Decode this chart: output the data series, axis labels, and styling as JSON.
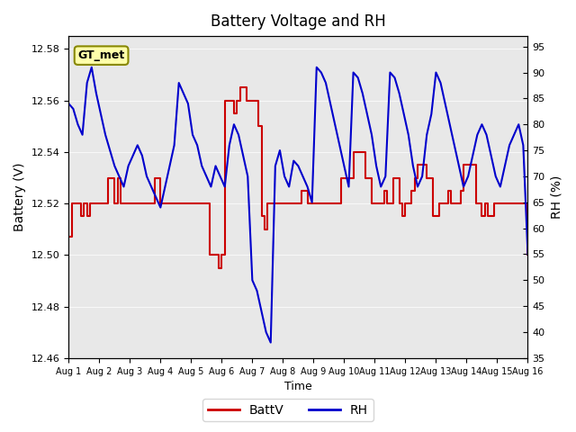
{
  "title": "Battery Voltage and RH",
  "xlabel": "Time",
  "ylabel_left": "Battery (V)",
  "ylabel_right": "RH (%)",
  "ylim_left": [
    12.46,
    12.585
  ],
  "ylim_right": [
    35,
    97
  ],
  "yticks_left": [
    12.46,
    12.48,
    12.5,
    12.52,
    12.54,
    12.56,
    12.58
  ],
  "yticks_right": [
    35,
    40,
    45,
    50,
    55,
    60,
    65,
    70,
    75,
    80,
    85,
    90,
    95
  ],
  "xtick_labels": [
    "Aug 1",
    "Aug 2",
    "Aug 3",
    "Aug 4",
    "Aug 5",
    "Aug 6",
    "Aug 7",
    "Aug 8",
    "Aug 9",
    "Aug 10",
    "Aug 11",
    "Aug 12",
    "Aug 13",
    "Aug 14",
    "Aug 15",
    "Aug 16"
  ],
  "annotation": "GT_met",
  "bg_color": "#e8e8e8",
  "battv_color": "#cc0000",
  "rh_color": "#0000cc",
  "legend_labels": [
    "BattV",
    "RH"
  ],
  "battv_x": [
    0,
    0.1,
    0.2,
    0.3,
    0.4,
    0.5,
    0.6,
    0.7,
    0.8,
    0.9,
    1.0,
    1.1,
    1.2,
    1.3,
    1.4,
    1.5,
    1.6,
    1.7,
    1.8,
    1.9,
    2.0,
    2.1,
    2.2,
    2.3,
    2.4,
    2.5,
    2.6,
    2.7,
    2.8,
    2.9,
    3.0,
    3.1,
    3.2,
    3.3,
    3.4,
    3.5,
    3.6,
    3.7,
    3.8,
    3.9,
    4.0,
    4.1,
    4.2,
    4.3,
    4.4,
    4.5,
    4.6,
    4.7,
    4.8,
    4.9,
    5.0,
    5.1,
    5.2,
    5.3,
    5.4,
    5.5,
    5.6,
    5.7,
    5.8,
    5.9,
    6.0,
    6.1,
    6.2,
    6.3,
    6.4,
    6.5,
    6.6,
    6.7,
    6.8,
    6.9,
    7.0,
    7.1,
    7.2,
    7.3,
    7.4,
    7.5,
    7.6,
    7.7,
    7.8,
    7.9,
    8.0,
    8.1,
    8.2,
    8.3,
    8.4,
    8.5,
    8.6,
    8.7,
    8.8,
    8.9,
    9.0,
    9.1,
    9.2,
    9.3,
    9.4,
    9.5,
    9.6,
    9.7,
    9.8,
    9.9,
    10.0,
    10.1,
    10.2,
    10.3,
    10.4,
    10.5,
    10.6,
    10.7,
    10.8,
    10.9,
    11.0,
    11.1,
    11.2,
    11.3,
    11.4,
    11.5,
    11.6,
    11.7,
    11.8,
    11.9,
    12.0,
    12.1,
    12.2,
    12.3,
    12.4,
    12.5,
    12.6,
    12.7,
    12.8,
    12.9,
    13.0,
    13.1,
    13.2,
    13.3,
    13.4,
    13.5,
    13.6,
    13.7,
    13.8,
    13.9,
    14.0,
    14.1,
    14.2,
    14.3,
    14.4,
    14.5,
    14.6,
    14.7,
    14.8,
    14.9,
    15.0
  ],
  "battv_y": [
    12.507,
    12.52,
    12.52,
    12.52,
    12.515,
    12.52,
    12.515,
    12.52,
    12.52,
    12.52,
    12.52,
    12.52,
    12.52,
    12.53,
    12.53,
    12.52,
    12.53,
    12.52,
    12.52,
    12.52,
    12.52,
    12.52,
    12.52,
    12.52,
    12.52,
    12.52,
    12.52,
    12.52,
    12.53,
    12.53,
    12.52,
    12.52,
    12.52,
    12.52,
    12.52,
    12.52,
    12.52,
    12.52,
    12.52,
    12.52,
    12.52,
    12.52,
    12.52,
    12.52,
    12.52,
    12.52,
    12.5,
    12.5,
    12.5,
    12.495,
    12.5,
    12.56,
    12.56,
    12.56,
    12.555,
    12.56,
    12.565,
    12.565,
    12.56,
    12.56,
    12.56,
    12.56,
    12.55,
    12.515,
    12.51,
    12.52,
    12.52,
    12.52,
    12.52,
    12.52,
    12.52,
    12.52,
    12.52,
    12.52,
    12.52,
    12.52,
    12.525,
    12.525,
    12.52,
    12.52,
    12.52,
    12.52,
    12.52,
    12.52,
    12.52,
    12.52,
    12.52,
    12.52,
    12.52,
    12.53,
    12.53,
    12.53,
    12.53,
    12.54,
    12.54,
    12.54,
    12.54,
    12.53,
    12.53,
    12.52,
    12.52,
    12.52,
    12.52,
    12.525,
    12.52,
    12.52,
    12.53,
    12.53,
    12.52,
    12.515,
    12.52,
    12.52,
    12.525,
    12.53,
    12.535,
    12.535,
    12.535,
    12.53,
    12.53,
    12.515,
    12.515,
    12.52,
    12.52,
    12.52,
    12.525,
    12.52,
    12.52,
    12.52,
    12.525,
    12.535,
    12.535,
    12.535,
    12.535,
    12.52,
    12.52,
    12.515,
    12.52,
    12.515,
    12.515,
    12.52,
    12.52,
    12.52,
    12.52,
    12.52,
    12.52,
    12.52,
    12.52,
    12.52,
    12.52,
    12.52,
    12.5
  ],
  "rh_x": [
    0,
    0.15,
    0.3,
    0.45,
    0.6,
    0.75,
    0.9,
    1.05,
    1.2,
    1.35,
    1.5,
    1.65,
    1.8,
    1.95,
    2.1,
    2.25,
    2.4,
    2.55,
    2.7,
    2.85,
    3.0,
    3.15,
    3.3,
    3.45,
    3.6,
    3.75,
    3.9,
    4.05,
    4.2,
    4.35,
    4.5,
    4.65,
    4.8,
    4.95,
    5.1,
    5.25,
    5.4,
    5.55,
    5.7,
    5.85,
    6.0,
    6.15,
    6.3,
    6.45,
    6.6,
    6.75,
    6.9,
    7.05,
    7.2,
    7.35,
    7.5,
    7.65,
    7.8,
    7.95,
    8.1,
    8.25,
    8.4,
    8.55,
    8.7,
    8.85,
    9.0,
    9.15,
    9.3,
    9.45,
    9.6,
    9.75,
    9.9,
    10.05,
    10.2,
    10.35,
    10.5,
    10.65,
    10.8,
    10.95,
    11.1,
    11.25,
    11.4,
    11.55,
    11.7,
    11.85,
    12.0,
    12.15,
    12.3,
    12.45,
    12.6,
    12.75,
    12.9,
    13.05,
    13.2,
    13.35,
    13.5,
    13.65,
    13.8,
    13.95,
    14.1,
    14.25,
    14.4,
    14.55,
    14.7,
    14.85,
    15.0
  ],
  "rh_y": [
    84,
    83,
    80,
    78,
    88,
    91,
    86,
    82,
    78,
    75,
    72,
    70,
    68,
    72,
    74,
    76,
    74,
    70,
    68,
    66,
    64,
    68,
    72,
    76,
    88,
    86,
    84,
    78,
    76,
    72,
    70,
    68,
    72,
    70,
    68,
    76,
    80,
    78,
    74,
    70,
    50,
    48,
    44,
    40,
    38,
    72,
    75,
    70,
    68,
    73,
    72,
    70,
    68,
    65,
    91,
    90,
    88,
    84,
    80,
    76,
    72,
    68,
    90,
    89,
    86,
    82,
    78,
    72,
    68,
    70,
    90,
    89,
    86,
    82,
    78,
    72,
    68,
    70,
    78,
    82,
    90,
    88,
    84,
    80,
    76,
    72,
    68,
    70,
    74,
    78,
    80,
    78,
    74,
    70,
    68,
    72,
    76,
    78,
    80,
    76,
    55
  ]
}
